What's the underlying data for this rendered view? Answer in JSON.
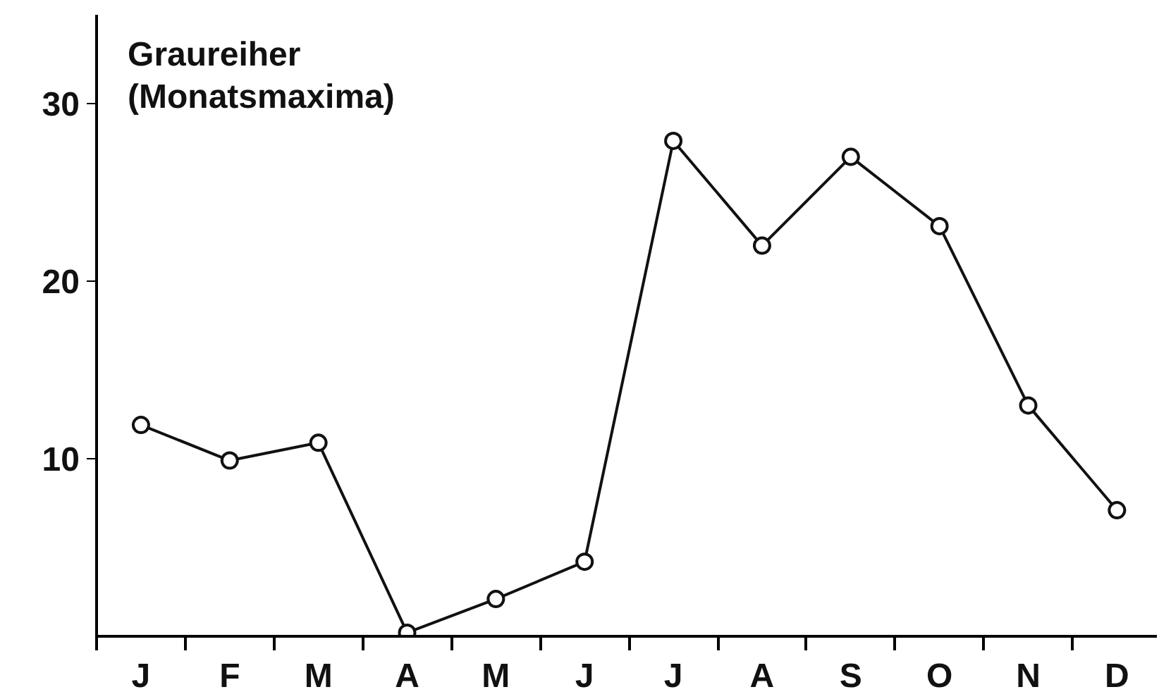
{
  "chart_data": {
    "type": "line",
    "title": "Graureiher\n(Monatsmaxima)",
    "categories": [
      "J",
      "F",
      "M",
      "A",
      "M",
      "J",
      "J",
      "A",
      "S",
      "O",
      "N",
      "D"
    ],
    "series": [
      {
        "color": "#111111",
        "values": [
          11.9,
          9.9,
          10.9,
          0.2,
          2.1,
          4.2,
          27.9,
          22.0,
          27.0,
          23.1,
          13.0,
          7.1
        ]
      }
    ],
    "ylim": [
      0,
      35
    ],
    "yticks": [
      10,
      20,
      30
    ],
    "marker": "circle",
    "line_style": "solid"
  }
}
